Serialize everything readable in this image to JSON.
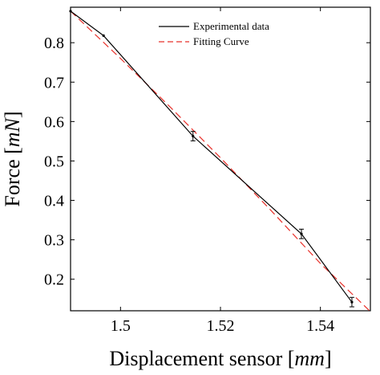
{
  "chart_data": {
    "type": "line",
    "xlabel_prefix": "Displacement sensor ",
    "xlabel_unit": "mm",
    "ylabel_prefix": "Force ",
    "ylabel_unit": "mN",
    "xlim": [
      1.49,
      1.55
    ],
    "ylim": [
      0.12,
      0.89
    ],
    "x_ticks": [
      1.5,
      1.52,
      1.54
    ],
    "x_tick_labels": [
      "1.5",
      "1.52",
      "1.54"
    ],
    "y_ticks": [
      0.2,
      0.3,
      0.4,
      0.5,
      0.6,
      0.7,
      0.8
    ],
    "y_tick_labels": [
      "0.2",
      "0.3",
      "0.4",
      "0.5",
      "0.6",
      "0.7",
      "0.8"
    ],
    "grid": false,
    "legend_position": "top-right",
    "series": [
      {
        "name": "Experimental data",
        "style": "solid",
        "color": "#000000",
        "markers": true,
        "points": [
          {
            "x": 1.49,
            "y": 0.88,
            "err": 0.0
          },
          {
            "x": 1.4966,
            "y": 0.818,
            "err": 0.0
          },
          {
            "x": 1.5145,
            "y": 0.563,
            "err": 0.012
          },
          {
            "x": 1.5362,
            "y": 0.315,
            "err": 0.012
          },
          {
            "x": 1.5463,
            "y": 0.142,
            "err": 0.012
          }
        ]
      },
      {
        "name": "Fitting Curve",
        "style": "dashed",
        "color": "#e8302a",
        "markers": false,
        "points": [
          {
            "x": 1.49,
            "y": 0.88
          },
          {
            "x": 1.5,
            "y": 0.76
          },
          {
            "x": 1.51,
            "y": 0.636
          },
          {
            "x": 1.52,
            "y": 0.508
          },
          {
            "x": 1.53,
            "y": 0.376
          },
          {
            "x": 1.54,
            "y": 0.24
          },
          {
            "x": 1.55,
            "y": 0.118
          }
        ]
      }
    ]
  }
}
